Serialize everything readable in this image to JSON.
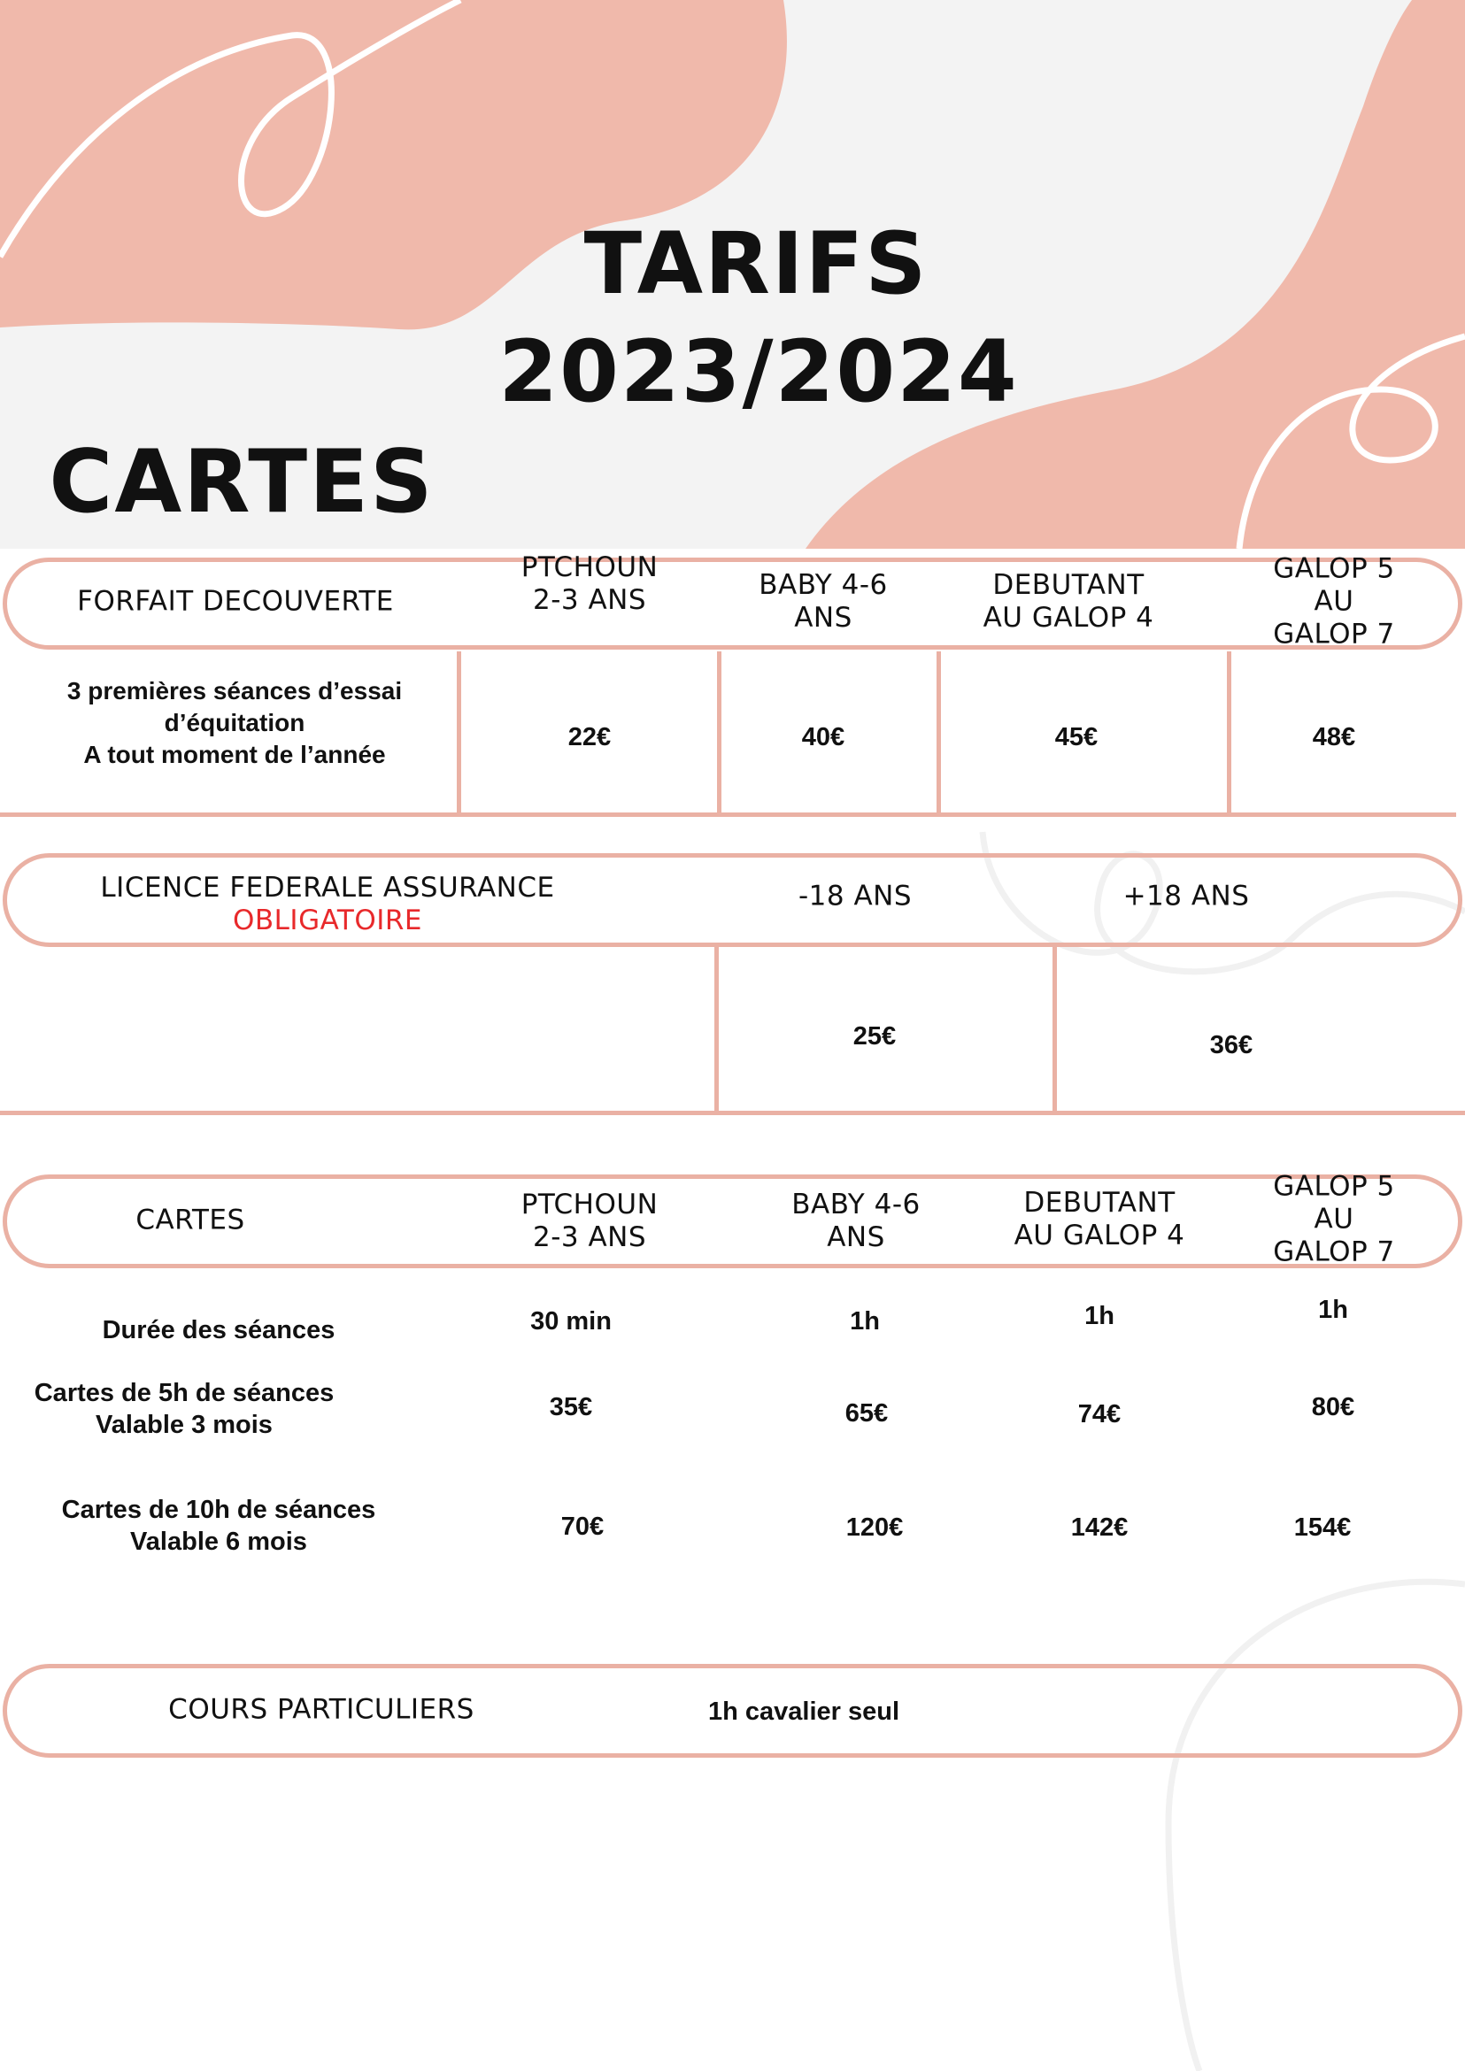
{
  "header": {
    "title": "TARIFS",
    "season": "2023/2024",
    "section": "CARTES"
  },
  "colors": {
    "accent": "#eab1a4",
    "blob": "#f0b9ab",
    "background": "#f3f3f3",
    "required": "#e8292b"
  },
  "forfait": {
    "label": "FORFAIT DECOUVERTE",
    "columns": [
      "PTCHOUN\n2-3 ANS",
      "BABY 4-6\nANS",
      "DEBUTANT\nAU GALOP 4",
      "GALOP 5\nAU\nGALOP 7"
    ],
    "description": [
      "3 premières séances d’essai",
      "d’équitation",
      "A tout moment de l’année"
    ],
    "prices": [
      "22€",
      "40€",
      "45€",
      "48€"
    ]
  },
  "licence": {
    "label": "LICENCE FEDERALE ASSURANCE",
    "required": "OBLIGATOIRE",
    "columns": [
      "-18 ANS",
      "+18 ANS"
    ],
    "prices": [
      "25€",
      "36€"
    ]
  },
  "cartes": {
    "label": "CARTES",
    "columns": [
      "PTCHOUN\n2-3 ANS",
      "BABY 4-6\nANS",
      "DEBUTANT\nAU GALOP 4",
      "GALOP 5\nAU\nGALOP 7"
    ],
    "rows": [
      {
        "label": [
          "Durée des séances"
        ],
        "values": [
          "30 min",
          "1h",
          "1h",
          "1h"
        ]
      },
      {
        "label": [
          "Cartes de 5h de séances",
          "Valable 3 mois"
        ],
        "values": [
          "35€",
          "65€",
          "74€",
          "80€"
        ]
      },
      {
        "label": [
          "Cartes de 10h de séances",
          "Valable 6 mois"
        ],
        "values": [
          "70€",
          "120€",
          "142€",
          "154€"
        ]
      }
    ]
  },
  "cours": {
    "label": "COURS PARTICULIERS",
    "detail": "1h cavalier seul"
  }
}
